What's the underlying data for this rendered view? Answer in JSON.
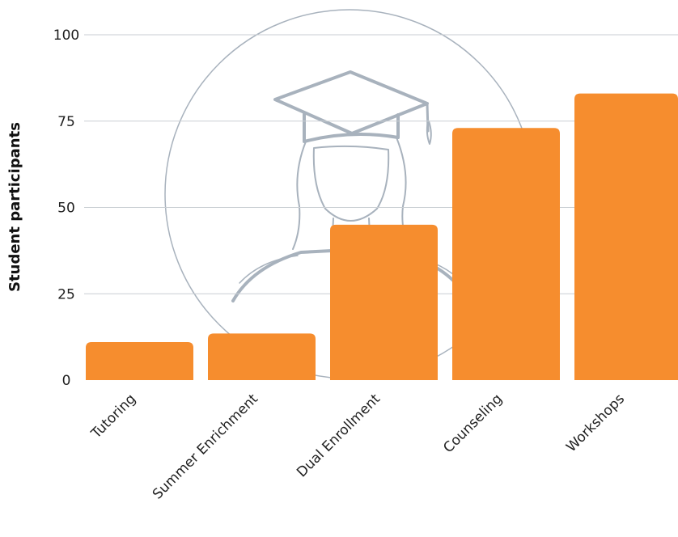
{
  "chart_data": {
    "type": "bar",
    "title": "",
    "xlabel": "",
    "ylabel": "Student participants",
    "categories": [
      "Tutoring",
      "Summer Enrichment",
      "Dual Enrollment",
      "Counseling",
      "Workshops"
    ],
    "values": [
      11,
      13.5,
      45,
      73,
      83
    ],
    "ylim": [
      0,
      100
    ],
    "yticks": [
      0,
      25,
      50,
      75,
      100
    ],
    "grid": true,
    "legend": "none"
  },
  "colors": {
    "bar": "#f68d2e",
    "grid": "#c9ced3",
    "watermark": "#a8b2bd"
  },
  "watermark": {
    "icon": "graduate-student-icon"
  }
}
